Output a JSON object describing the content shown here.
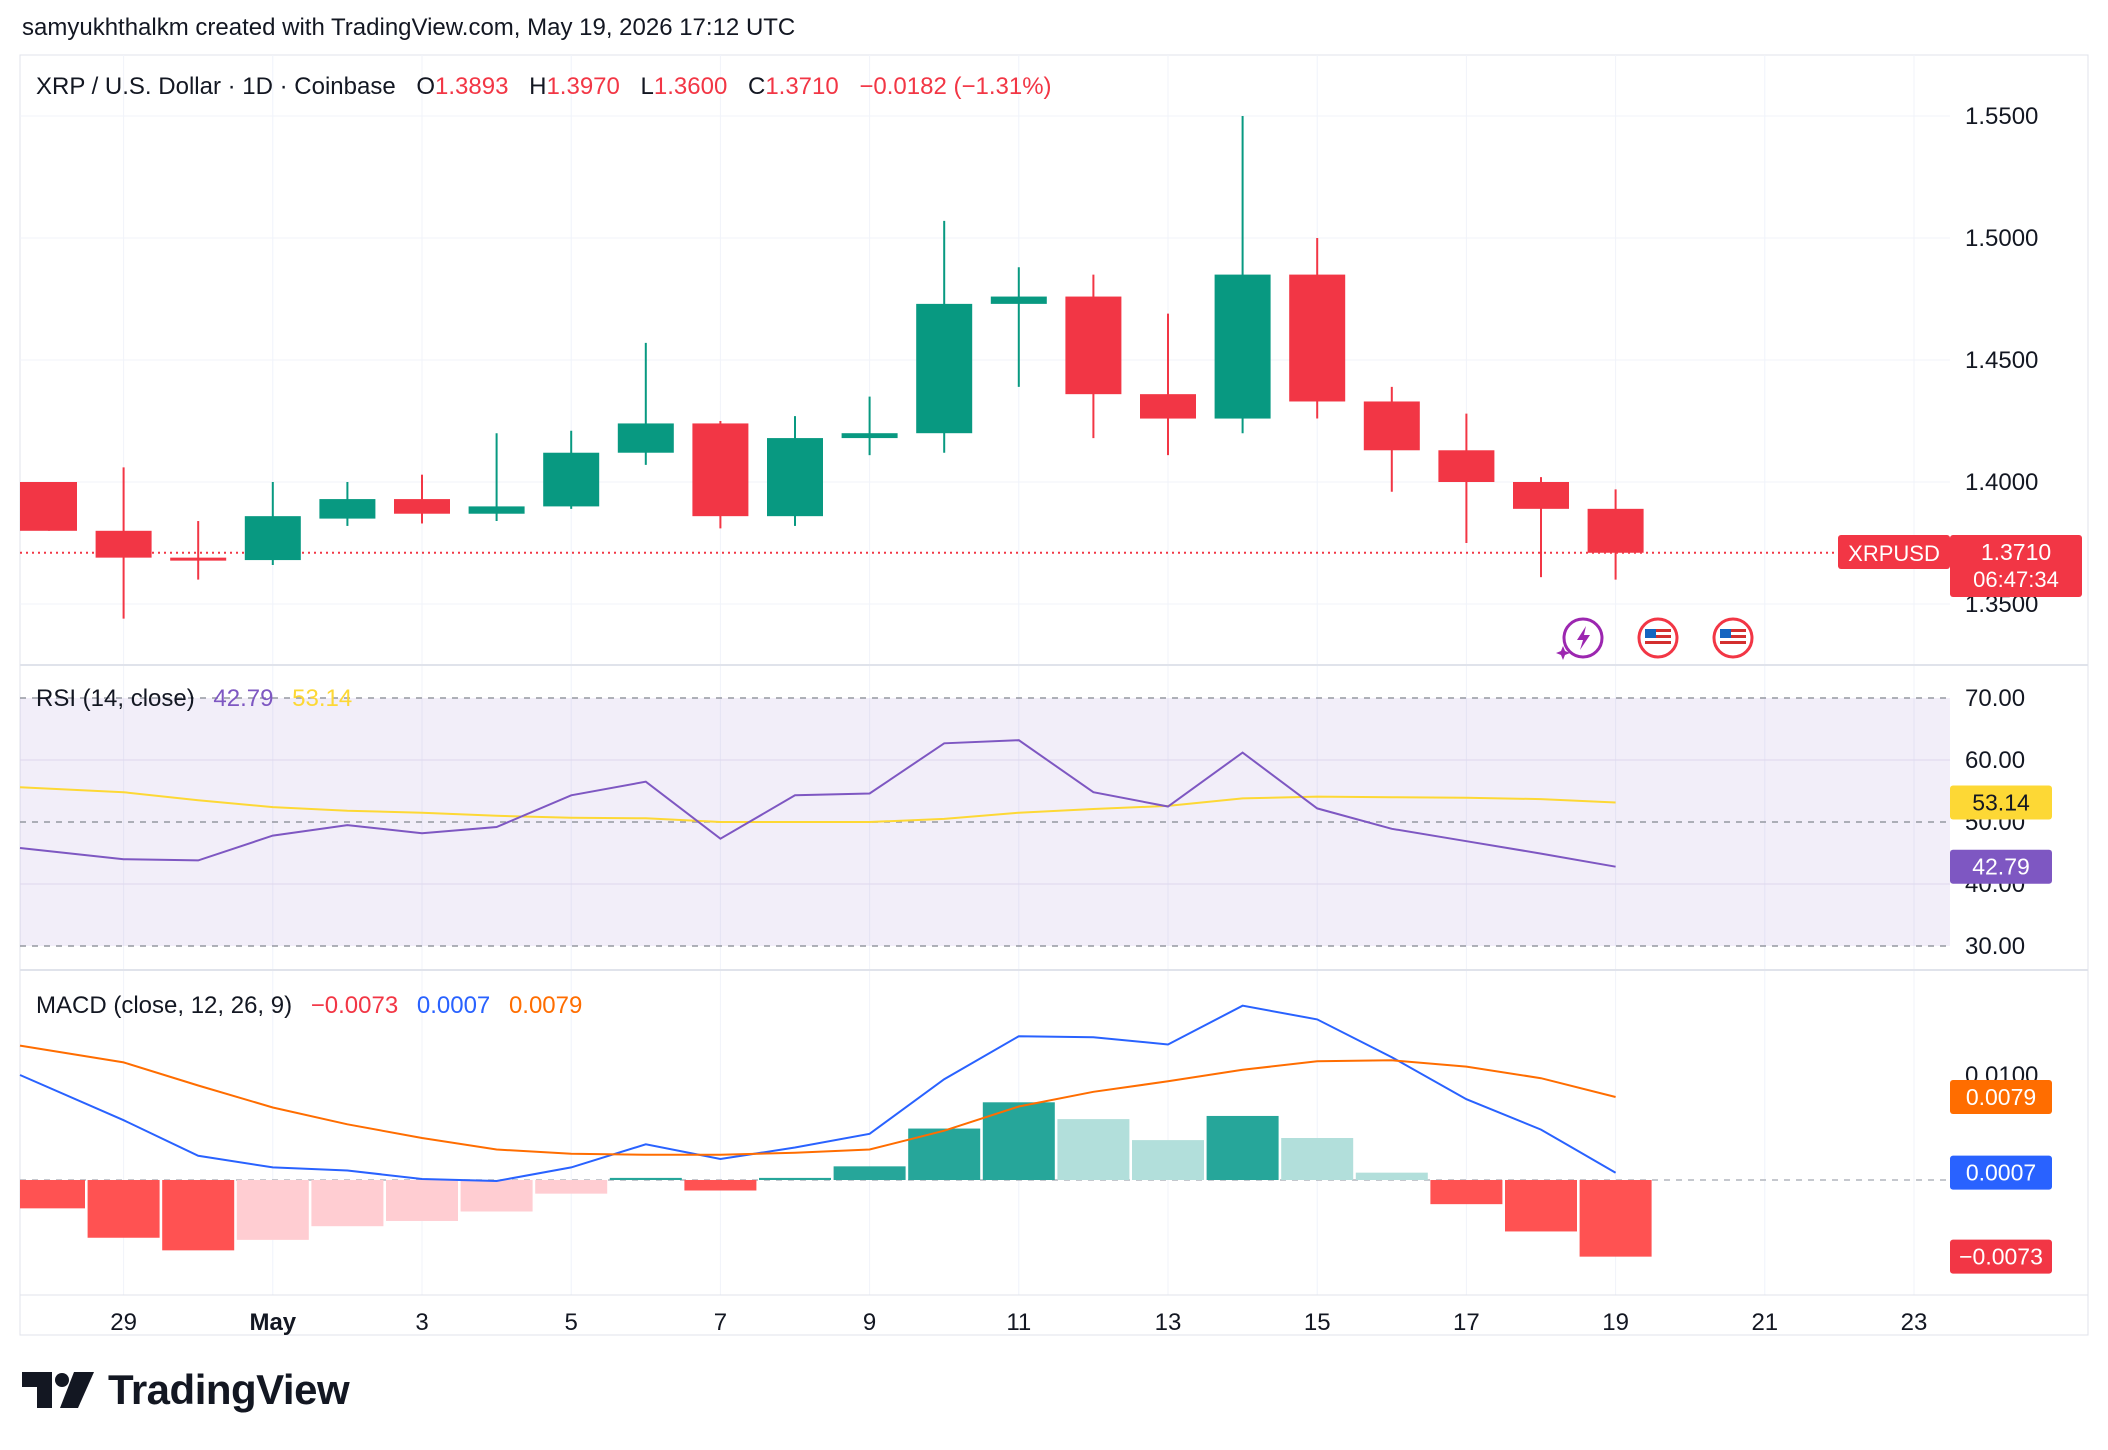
{
  "header": {
    "credit": "samyukhthalkm created with TradingView.com, May 19, 2026 17:12 UTC"
  },
  "legend": {
    "symbol": "XRP / U.S. Dollar · 1D · Coinbase",
    "o_label": "O",
    "o_value": "1.3893",
    "h_label": "H",
    "h_value": "1.3970",
    "l_label": "L",
    "l_value": "1.3600",
    "c_label": "C",
    "c_value": "1.3710",
    "change": "−0.0182 (−1.31%)"
  },
  "price_tag": {
    "symbol": "XRPUSD",
    "price": "1.3710",
    "countdown": "06:47:34"
  },
  "rsi_legend": {
    "label": "RSI (14, close)",
    "rsi_value": "42.79",
    "ma_value": "53.14"
  },
  "macd_legend": {
    "label": "MACD (close, 12, 26, 9)",
    "hist_value": "−0.0073",
    "macd_value": "0.0007",
    "signal_value": "0.0079"
  },
  "brand": {
    "name": "TradingView"
  },
  "colors": {
    "up": "#089981",
    "down": "#f23645",
    "rsi": "#7e57c2",
    "rsi_ma": "#fdd835",
    "macd": "#2962ff",
    "signal": "#ff6d00",
    "hist_up_strong": "#26a69a",
    "hist_up_weak": "#b2dfdb",
    "hist_down_strong": "#ff5252",
    "hist_down_weak": "#ffcdd2"
  },
  "chart_data": {
    "type": "candlestick",
    "price_axis": {
      "ticks": [
        "1.5500",
        "1.5000",
        "1.4500",
        "1.4000",
        "1.3500"
      ],
      "ylim": [
        1.325,
        1.575
      ]
    },
    "x_axis": {
      "ticks": [
        "29",
        "May",
        "3",
        "5",
        "7",
        "9",
        "11",
        "13",
        "15",
        "17",
        "19",
        "21",
        "23"
      ]
    },
    "candles": [
      {
        "date": "Apr 28",
        "open": 1.4,
        "high": 1.4,
        "low": 1.38,
        "close": 1.38
      },
      {
        "date": "Apr 29",
        "open": 1.38,
        "high": 1.406,
        "low": 1.344,
        "close": 1.369
      },
      {
        "date": "Apr 30",
        "open": 1.369,
        "high": 1.384,
        "low": 1.36,
        "close": 1.368
      },
      {
        "date": "May 1",
        "open": 1.368,
        "high": 1.4,
        "low": 1.366,
        "close": 1.386
      },
      {
        "date": "May 2",
        "open": 1.385,
        "high": 1.4,
        "low": 1.382,
        "close": 1.393
      },
      {
        "date": "May 3",
        "open": 1.393,
        "high": 1.403,
        "low": 1.383,
        "close": 1.387
      },
      {
        "date": "May 4",
        "open": 1.387,
        "high": 1.42,
        "low": 1.384,
        "close": 1.39
      },
      {
        "date": "May 5",
        "open": 1.39,
        "high": 1.421,
        "low": 1.389,
        "close": 1.412
      },
      {
        "date": "May 6",
        "open": 1.412,
        "high": 1.457,
        "low": 1.407,
        "close": 1.424
      },
      {
        "date": "May 7",
        "open": 1.424,
        "high": 1.425,
        "low": 1.381,
        "close": 1.386
      },
      {
        "date": "May 8",
        "open": 1.386,
        "high": 1.427,
        "low": 1.382,
        "close": 1.418
      },
      {
        "date": "May 9",
        "open": 1.418,
        "high": 1.435,
        "low": 1.411,
        "close": 1.42
      },
      {
        "date": "May 10",
        "open": 1.42,
        "high": 1.507,
        "low": 1.412,
        "close": 1.473
      },
      {
        "date": "May 11",
        "open": 1.473,
        "high": 1.488,
        "low": 1.439,
        "close": 1.476
      },
      {
        "date": "May 12",
        "open": 1.476,
        "high": 1.485,
        "low": 1.418,
        "close": 1.436
      },
      {
        "date": "May 13",
        "open": 1.436,
        "high": 1.469,
        "low": 1.411,
        "close": 1.426
      },
      {
        "date": "May 14",
        "open": 1.426,
        "high": 1.55,
        "low": 1.42,
        "close": 1.485
      },
      {
        "date": "May 15",
        "open": 1.485,
        "high": 1.5,
        "low": 1.426,
        "close": 1.433
      },
      {
        "date": "May 16",
        "open": 1.433,
        "high": 1.439,
        "low": 1.396,
        "close": 1.413
      },
      {
        "date": "May 17",
        "open": 1.413,
        "high": 1.428,
        "low": 1.375,
        "close": 1.4
      },
      {
        "date": "May 18",
        "open": 1.4,
        "high": 1.402,
        "low": 1.361,
        "close": 1.389
      },
      {
        "date": "May 19",
        "open": 1.389,
        "high": 1.397,
        "low": 1.36,
        "close": 1.371
      }
    ],
    "current_price": 1.371,
    "rsi": {
      "axis_ticks": [
        "70.00",
        "60.00",
        "50.00",
        "40.00",
        "30.00"
      ],
      "ylim": [
        27,
        73
      ],
      "band": [
        30,
        70
      ],
      "rsi_values": [
        45.8,
        44.0,
        43.8,
        47.8,
        49.5,
        48.2,
        49.2,
        54.3,
        56.5,
        47.3,
        54.3,
        54.6,
        62.7,
        63.2,
        54.8,
        52.5,
        61.2,
        52.2,
        48.9,
        46.9,
        44.9,
        42.79
      ],
      "ma_values": [
        55.6,
        54.8,
        53.5,
        52.4,
        51.8,
        51.5,
        51.0,
        50.7,
        50.6,
        50.0,
        50.0,
        50.0,
        50.5,
        51.5,
        52.1,
        52.6,
        53.8,
        54.1,
        54.0,
        53.9,
        53.7,
        53.14
      ]
    },
    "macd": {
      "axis_ticks": [
        "0.0100"
      ],
      "ylim": [
        -0.0145,
        0.0215
      ],
      "macd_values": [
        0.01,
        0.0057,
        0.0023,
        0.0012,
        0.0009,
        0.0001,
        -0.0001,
        0.0012,
        0.0034,
        0.002,
        0.0031,
        0.0044,
        0.0096,
        0.0137,
        0.0136,
        0.0129,
        0.0166,
        0.0153,
        0.0117,
        0.0077,
        0.0048,
        0.0007
      ],
      "signal_values": [
        0.0128,
        0.0112,
        0.009,
        0.0069,
        0.0053,
        0.004,
        0.0029,
        0.0025,
        0.0024,
        0.0024,
        0.0026,
        0.0029,
        0.0047,
        0.007,
        0.0084,
        0.0094,
        0.0105,
        0.0113,
        0.0114,
        0.0108,
        0.0097,
        0.0079
      ],
      "histogram": [
        -0.0027,
        -0.0055,
        -0.0067,
        -0.0057,
        -0.0044,
        -0.0039,
        -0.003,
        -0.0013,
        0.0002,
        -0.001,
        0.0002,
        0.0013,
        0.0049,
        0.0074,
        0.0058,
        0.0038,
        0.0061,
        0.004,
        0.0007,
        -0.0023,
        -0.0049,
        -0.0073
      ]
    }
  }
}
